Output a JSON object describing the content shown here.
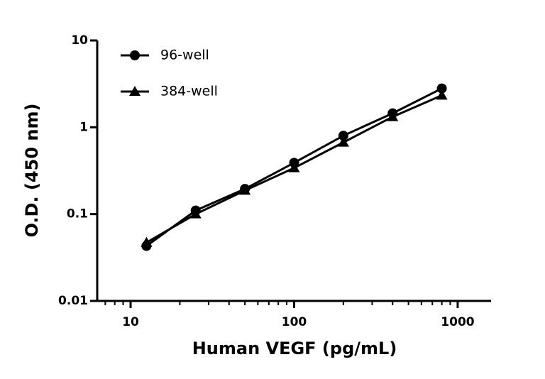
{
  "chart_data": {
    "type": "line",
    "x_label": "Human VEGF (pg/mL)",
    "y_label": "O.D. (450 nm)",
    "x_scale": "log",
    "y_scale": "log",
    "xlim": [
      6.25,
      1600
    ],
    "xticks": [
      10,
      100,
      1000
    ],
    "xminorticks": [
      7,
      8,
      9,
      20,
      30,
      40,
      50,
      60,
      70,
      80,
      90,
      200,
      300,
      400,
      500,
      600,
      700,
      800,
      900
    ],
    "ylim": [
      0.01,
      10
    ],
    "yticks": [
      0.01,
      0.1,
      1,
      10
    ],
    "legend": "top-left",
    "grid": false,
    "series": [
      {
        "name": "96-well",
        "color": "#000000",
        "marker": "circle",
        "x": [
          12.5,
          25,
          50,
          100,
          200,
          400,
          800
        ],
        "values": [
          0.043,
          0.11,
          0.195,
          0.39,
          0.8,
          1.45,
          2.8
        ]
      },
      {
        "name": "384-well",
        "color": "#000000",
        "marker": "triangle",
        "x": [
          12.5,
          25,
          50,
          100,
          200,
          400,
          800
        ],
        "values": [
          0.047,
          0.1,
          0.187,
          0.34,
          0.67,
          1.32,
          2.33
        ]
      }
    ]
  }
}
